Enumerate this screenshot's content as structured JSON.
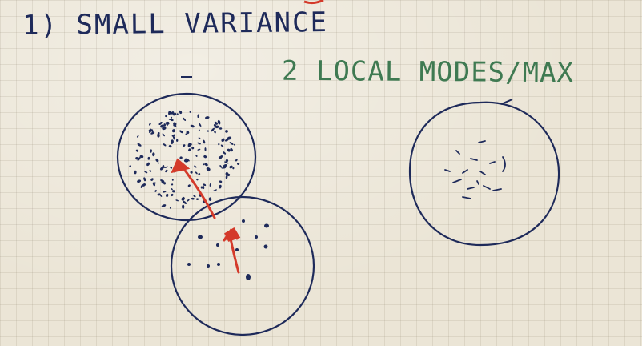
{
  "heading": "1) SMALL VARIANCE",
  "subheading": "2 LOCAL MODES/MAX",
  "colors": {
    "board": "#ebe5d6",
    "blue_ink": "#1e2a5a",
    "green_ink": "#3f7a52",
    "red_ink": "#d43a2a"
  },
  "shapes": {
    "circles": 3,
    "arrows": 2
  }
}
